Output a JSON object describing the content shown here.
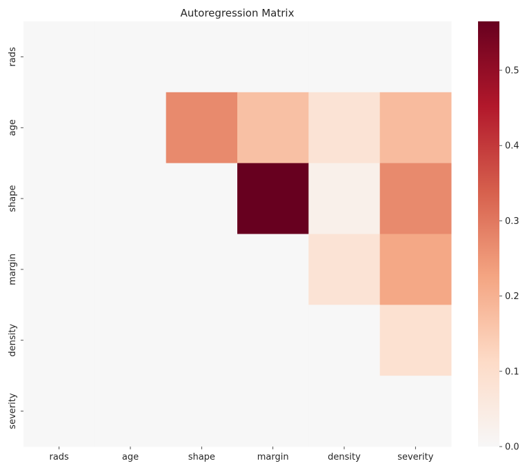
{
  "chart_data": {
    "type": "heatmap",
    "title": "Autoregression Matrix",
    "x_labels": [
      "rads",
      "age",
      "shape",
      "margin",
      "density",
      "severity"
    ],
    "y_labels": [
      "rads",
      "age",
      "shape",
      "margin",
      "density",
      "severity"
    ],
    "values": [
      [
        0,
        0,
        0,
        0,
        0,
        0
      ],
      [
        0,
        0,
        0.27,
        0.17,
        0.08,
        0.18
      ],
      [
        0,
        0,
        0,
        0.565,
        0.03,
        0.27
      ],
      [
        0,
        0,
        0,
        0,
        0.08,
        0.22
      ],
      [
        0,
        0,
        0,
        0,
        0,
        0.09
      ],
      [
        0,
        0,
        0,
        0,
        0,
        0
      ]
    ],
    "colorbar": {
      "cmap": "RdBu_r",
      "vmin": 0.0,
      "vmax": 0.565,
      "ticks": [
        "0.0",
        "0.1",
        "0.2",
        "0.3",
        "0.4",
        "0.5"
      ]
    }
  }
}
